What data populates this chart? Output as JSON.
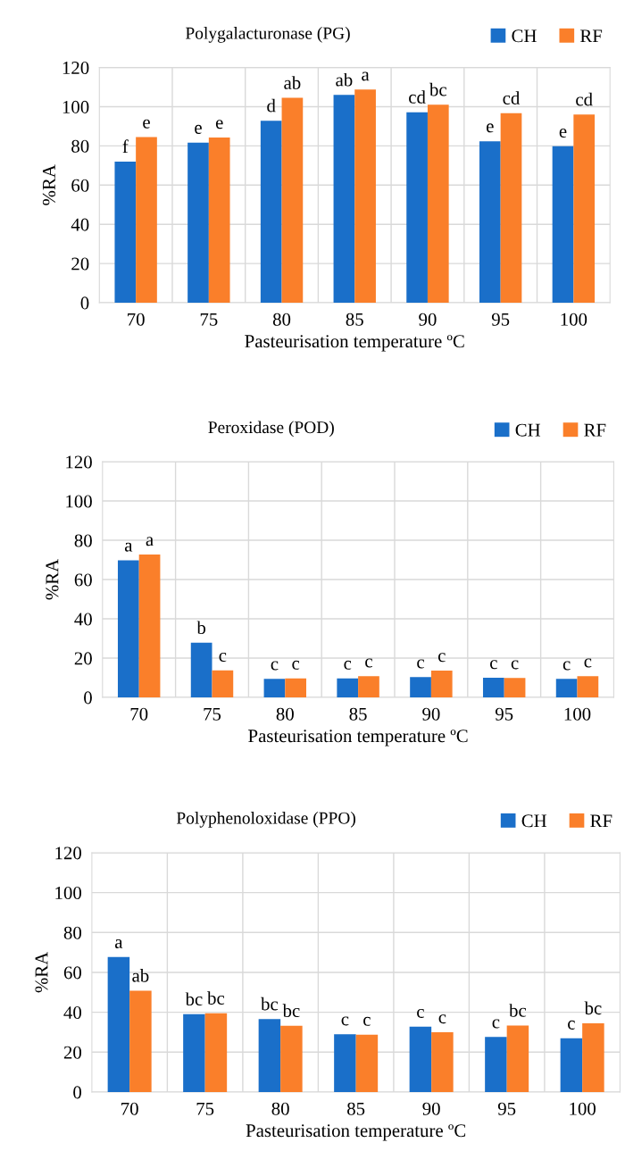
{
  "chart_data": [
    {
      "type": "bar",
      "title": "Polygalacturonase (PG)",
      "xlabel": "Pasteurisation temperature ºC",
      "ylabel": "%RA",
      "categories": [
        "70",
        "75",
        "80",
        "85",
        "90",
        "95",
        "100"
      ],
      "ylim": [
        0,
        120
      ],
      "yticks": [
        0,
        20,
        40,
        60,
        80,
        100,
        120
      ],
      "grid": true,
      "legend": "top right",
      "series": [
        {
          "name": "CH",
          "color": "#1a6fc9",
          "values": [
            72,
            81.7,
            92.8,
            106,
            97.2,
            82.4,
            79.8
          ],
          "value_labels": [
            "f",
            "e",
            "d",
            "ab",
            "cd",
            "e",
            "e"
          ]
        },
        {
          "name": "RF",
          "color": "#fa7f2a",
          "values": [
            84.5,
            84.3,
            104.5,
            108.8,
            101,
            96.7,
            96
          ],
          "value_labels": [
            "e",
            "e",
            "ab",
            "a",
            "bc",
            "cd",
            "cd"
          ]
        }
      ]
    },
    {
      "type": "bar",
      "title": "Peroxidase (POD)",
      "xlabel": "Pasteurisation temperature ºC",
      "ylabel": "%RA",
      "categories": [
        "70",
        "75",
        "80",
        "85",
        "90",
        "95",
        "100"
      ],
      "ylim": [
        0,
        120
      ],
      "yticks": [
        0,
        20,
        40,
        60,
        80,
        100,
        120
      ],
      "grid": true,
      "legend": "top right",
      "series": [
        {
          "name": "CH",
          "color": "#1a6fc9",
          "values": [
            69.8,
            27.8,
            9.4,
            9.7,
            10.3,
            10,
            9.4
          ],
          "value_labels": [
            "a",
            "b",
            "c",
            "c",
            "c",
            "c",
            "c"
          ]
        },
        {
          "name": "RF",
          "color": "#fa7f2a",
          "values": [
            72.7,
            13.7,
            9.7,
            10.8,
            13.6,
            9.9,
            10.8
          ],
          "value_labels": [
            "a",
            "c",
            "c",
            "c",
            "c",
            "c",
            "c"
          ]
        }
      ]
    },
    {
      "type": "bar",
      "title": "Polyphenoloxidase (PPO)",
      "xlabel": "Pasteurisation temperature ºC",
      "ylabel": "%RA",
      "categories": [
        "70",
        "75",
        "80",
        "85",
        "90",
        "95",
        "100"
      ],
      "ylim": [
        0,
        120
      ],
      "yticks": [
        0,
        20,
        40,
        60,
        80,
        100,
        120
      ],
      "grid": true,
      "legend": "top right",
      "series": [
        {
          "name": "CH",
          "color": "#1a6fc9",
          "values": [
            67.7,
            39,
            36.6,
            29,
            32.8,
            27.6,
            27
          ],
          "value_labels": [
            "a",
            "bc",
            "bc",
            "c",
            "c",
            "c",
            "c"
          ]
        },
        {
          "name": "RF",
          "color": "#fa7f2a",
          "values": [
            50.8,
            39.5,
            33.2,
            28.8,
            30,
            33.3,
            34.5
          ],
          "value_labels": [
            "ab",
            "bc",
            "bc",
            "c",
            "c",
            "bc",
            "bc"
          ]
        }
      ]
    }
  ]
}
